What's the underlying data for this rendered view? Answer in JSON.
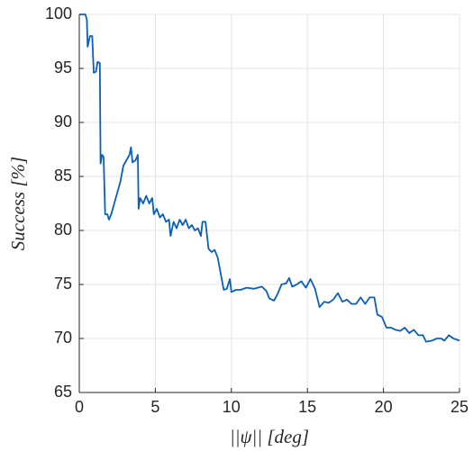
{
  "chart_data": {
    "type": "line",
    "x_label": "||ψ|| [deg]",
    "y_label": "Success [%]",
    "color": "#0a5fb8",
    "grid": true,
    "xlim": [
      0,
      25
    ],
    "xticks": [
      0,
      5,
      10,
      15,
      20,
      25
    ],
    "ylim": [
      65,
      100
    ],
    "yticks": [
      65,
      70,
      75,
      80,
      85,
      90,
      95,
      100
    ],
    "x": [
      0,
      0.4,
      0.5,
      0.55,
      0.7,
      0.85,
      0.95,
      1.1,
      1.2,
      1.35,
      1.4,
      1.5,
      1.6,
      1.7,
      1.85,
      1.95,
      2.1,
      2.3,
      2.5,
      2.7,
      2.9,
      3.1,
      3.3,
      3.4,
      3.5,
      3.7,
      3.85,
      3.9,
      4.0,
      4.2,
      4.4,
      4.6,
      4.8,
      4.9,
      5.1,
      5.3,
      5.5,
      5.7,
      5.9,
      6.0,
      6.2,
      6.4,
      6.6,
      6.8,
      7.0,
      7.2,
      7.4,
      7.6,
      7.8,
      8.0,
      8.1,
      8.3,
      8.5,
      8.7,
      8.9,
      9.1,
      9.3,
      9.5,
      9.7,
      9.9,
      10.0,
      10.3,
      10.6,
      11.0,
      11.5,
      12.0,
      12.3,
      12.5,
      12.8,
      13.0,
      13.3,
      13.6,
      13.8,
      14.0,
      14.3,
      14.6,
      14.9,
      15.2,
      15.5,
      15.8,
      16.1,
      16.4,
      16.7,
      17.0,
      17.3,
      17.6,
      17.9,
      18.2,
      18.5,
      18.8,
      19.1,
      19.4,
      19.6,
      19.9,
      20.2,
      20.5,
      20.8,
      21.1,
      21.4,
      21.7,
      22.0,
      22.3,
      22.6,
      22.8,
      23.2,
      23.5,
      23.8,
      24.0,
      24.3,
      24.6,
      24.8,
      25.0
    ],
    "values": [
      100,
      100,
      99.5,
      97,
      98,
      98,
      94.6,
      94.7,
      95.6,
      95.5,
      86.2,
      87,
      86.8,
      81.5,
      81.5,
      81,
      81.5,
      82.5,
      83.5,
      84.5,
      86,
      86.5,
      87,
      87.7,
      86.3,
      86.5,
      87,
      82,
      83,
      82.5,
      83.2,
      82.5,
      83,
      81.5,
      82,
      81.2,
      81.5,
      80.8,
      81,
      79.5,
      80.8,
      80.2,
      81,
      80.5,
      81,
      80.2,
      80.5,
      80,
      80.2,
      79.5,
      80.8,
      80.8,
      78.3,
      78,
      78.2,
      77.5,
      76,
      74.5,
      74.6,
      75.5,
      74.3,
      74.5,
      74.5,
      74.7,
      74.6,
      74.8,
      74.4,
      73.7,
      73.5,
      74,
      75,
      75.1,
      75.6,
      74.8,
      75,
      75.3,
      74.7,
      75.5,
      74.6,
      72.9,
      73.4,
      73.3,
      73.6,
      74.2,
      73.4,
      73.6,
      73.2,
      73.2,
      73.8,
      73.2,
      73.8,
      73.8,
      72.2,
      72,
      71,
      71,
      70.8,
      70.7,
      71,
      70.5,
      70.8,
      70.3,
      70.3,
      69.7,
      69.8,
      70,
      70,
      69.8,
      70.3,
      70,
      69.9,
      69.8
    ]
  }
}
